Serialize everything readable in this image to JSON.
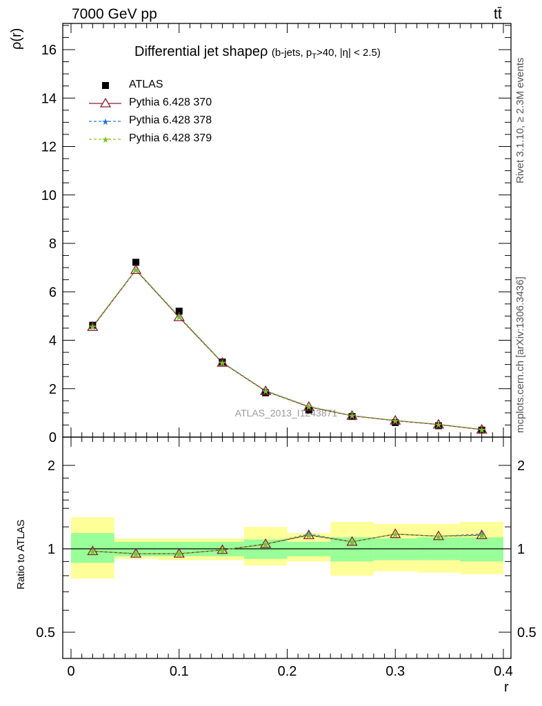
{
  "header": {
    "energy_label": "7000 GeV pp",
    "process_label": "tt̄"
  },
  "side_text": {
    "rivet": "Rivet 3.1.10, ≥ 2.3M events",
    "mcplots": "mcplots.cern.ch [arXiv:1306.3436]"
  },
  "colors": {
    "data": "#000000",
    "pythia370": "#8b1a2b",
    "pythia378": "#1f77d4",
    "pythia379": "#7ec41a",
    "band_inner": "#99ff99",
    "band_outer": "#ffff99"
  },
  "chart_data": [
    {
      "type": "scatter",
      "title_main": "Differential jet shapeρ",
      "title_sub": "(b-jets, p",
      "title_sub_subscript": "T",
      "title_sub_rest": ">40, |η| < 2.5)",
      "ylabel": "ρ(r)",
      "xlim": [
        0,
        0.4
      ],
      "ylim": [
        0,
        17
      ],
      "yticks": [
        0,
        2,
        4,
        6,
        8,
        10,
        12,
        14,
        16
      ],
      "watermark": "ATLAS_2013_I1243871",
      "x": [
        0.02,
        0.06,
        0.1,
        0.14,
        0.18,
        0.22,
        0.26,
        0.3,
        0.34,
        0.38
      ],
      "series": [
        {
          "name": "ATLAS",
          "marker": "square",
          "values": [
            4.62,
            7.22,
            5.2,
            3.1,
            1.83,
            1.12,
            0.85,
            0.6,
            0.47,
            0.29
          ]
        },
        {
          "name": "Pythia 6.428 370",
          "marker": "triangle",
          "values": [
            4.55,
            6.9,
            4.95,
            3.07,
            1.9,
            1.25,
            0.88,
            0.68,
            0.52,
            0.31
          ]
        },
        {
          "name": "Pythia 6.428 378",
          "marker": "star",
          "values": [
            4.58,
            6.92,
            4.98,
            3.09,
            1.92,
            1.27,
            0.89,
            0.69,
            0.53,
            0.32
          ]
        },
        {
          "name": "Pythia 6.428 379",
          "marker": "star",
          "values": [
            4.57,
            6.91,
            4.97,
            3.08,
            1.91,
            1.26,
            0.89,
            0.69,
            0.53,
            0.32
          ]
        }
      ]
    },
    {
      "type": "scatter",
      "ylabel": "Ratio to ATLAS",
      "xlabel": "r",
      "xlim": [
        0,
        0.4
      ],
      "ylim": [
        0.37,
        2.3
      ],
      "yscale": "log",
      "yticks": [
        0.5,
        1,
        2
      ],
      "xticks": [
        0,
        0.1,
        0.2,
        0.3,
        0.4
      ],
      "bins": [
        [
          0,
          0.04
        ],
        [
          0.04,
          0.08
        ],
        [
          0.08,
          0.12
        ],
        [
          0.12,
          0.16
        ],
        [
          0.16,
          0.2
        ],
        [
          0.2,
          0.24
        ],
        [
          0.24,
          0.28
        ],
        [
          0.28,
          0.32
        ],
        [
          0.32,
          0.36
        ],
        [
          0.36,
          0.4
        ]
      ],
      "stat_band": [
        [
          0.89,
          1.14
        ],
        [
          0.94,
          1.06
        ],
        [
          0.94,
          1.06
        ],
        [
          0.94,
          1.06
        ],
        [
          0.92,
          1.08
        ],
        [
          0.94,
          1.06
        ],
        [
          0.9,
          1.1
        ],
        [
          0.91,
          1.09
        ],
        [
          0.91,
          1.1
        ],
        [
          0.9,
          1.1
        ]
      ],
      "total_band": [
        [
          0.78,
          1.3
        ],
        [
          0.92,
          1.09
        ],
        [
          0.91,
          1.09
        ],
        [
          0.91,
          1.09
        ],
        [
          0.87,
          1.2
        ],
        [
          0.9,
          1.14
        ],
        [
          0.8,
          1.25
        ],
        [
          0.83,
          1.23
        ],
        [
          0.82,
          1.23
        ],
        [
          0.81,
          1.25
        ]
      ],
      "x": [
        0.02,
        0.06,
        0.1,
        0.14,
        0.18,
        0.22,
        0.26,
        0.3,
        0.34,
        0.38
      ],
      "series": [
        {
          "name": "Pythia 6.428 370",
          "values": [
            0.98,
            0.96,
            0.96,
            0.99,
            1.04,
            1.12,
            1.06,
            1.13,
            1.11,
            1.12
          ]
        },
        {
          "name": "Pythia 6.428 378",
          "values": [
            0.98,
            0.96,
            0.96,
            0.99,
            1.04,
            1.13,
            1.06,
            1.13,
            1.11,
            1.13
          ]
        },
        {
          "name": "Pythia 6.428 379",
          "values": [
            0.98,
            0.96,
            0.96,
            0.99,
            1.04,
            1.12,
            1.06,
            1.13,
            1.11,
            1.12
          ]
        }
      ]
    }
  ]
}
